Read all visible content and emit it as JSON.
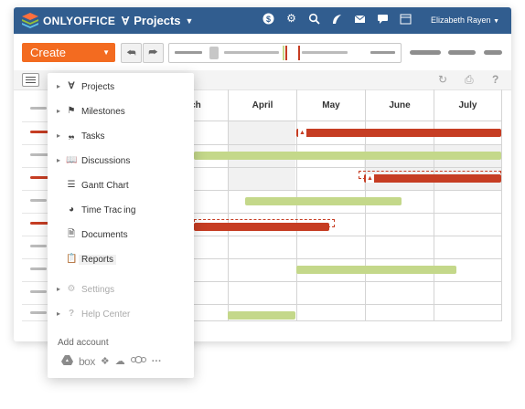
{
  "app": {
    "brand": "ONLYOFFICE",
    "module": "Projects",
    "user": "Elizabeth Rayen"
  },
  "header_icons": [
    "dollar-icon",
    "gear-icon",
    "search-icon",
    "feed-icon",
    "mail-icon",
    "chat-icon",
    "calendar-icon"
  ],
  "toolbar": {
    "create_label": "Create",
    "undo_icon": "undo-icon",
    "redo_icon": "redo-icon"
  },
  "gantt": {
    "months": [
      "rch",
      "April",
      "May",
      "June",
      "July"
    ]
  },
  "menu": {
    "items": [
      {
        "label": "Projects",
        "icon": "projects-icon",
        "expandable": true,
        "enabled": true
      },
      {
        "label": "Milestones",
        "icon": "flag-icon",
        "expandable": true,
        "enabled": true
      },
      {
        "label": "Tasks",
        "icon": "tasks-icon",
        "expandable": true,
        "enabled": true
      },
      {
        "label": "Discussions",
        "icon": "discussions-icon",
        "expandable": true,
        "enabled": true
      },
      {
        "label": "Gantt Chart",
        "icon": "gantt-icon",
        "expandable": false,
        "enabled": true
      },
      {
        "label": "Time Trac ing",
        "icon": "time-tracking-icon",
        "expandable": false,
        "enabled": true
      },
      {
        "label": "Documents",
        "icon": "documents-icon",
        "expandable": false,
        "enabled": true
      },
      {
        "label": "Reports",
        "icon": "reports-icon",
        "expandable": false,
        "enabled": true,
        "active": true
      },
      {
        "label": "Settings",
        "icon": "settings-icon",
        "expandable": true,
        "enabled": false
      },
      {
        "label": "Help Center",
        "icon": "help-icon",
        "expandable": true,
        "enabled": false
      }
    ],
    "add_account_label": "Add account",
    "account_icons": [
      "google-drive-icon",
      "box-icon",
      "dropbox-icon",
      "onedrive-icon",
      "owncloud-icon",
      "more-icon"
    ],
    "box_text": "box",
    "more_text": "···"
  },
  "colors": {
    "header": "#315d8f",
    "create": "#f36b20",
    "task_red": "#c63d23",
    "task_green": "#c4d88a"
  }
}
